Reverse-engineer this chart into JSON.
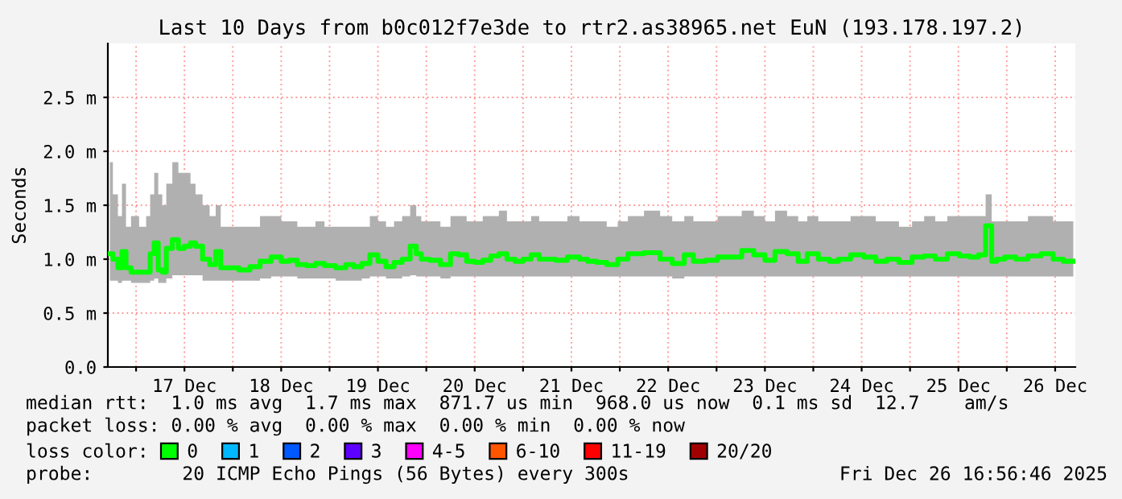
{
  "chart_data": {
    "type": "step",
    "title": "Last 10 Days from b0c012f7e3de to rtr2.as38965.net EuN (193.178.197.2)",
    "ylabel": "Seconds",
    "x": [
      "2025-12-16T17:30",
      "2025-12-16T19:00",
      "2025-12-16T20:00",
      "2025-12-16T21:00",
      "2025-12-16T22:00",
      "2025-12-16T23:30",
      "2025-12-17T02:00",
      "2025-12-17T03:00",
      "2025-12-17T04:00",
      "2025-12-17T05:00",
      "2025-12-17T06:00",
      "2025-12-17T07:00",
      "2025-12-17T08:00",
      "2025-12-17T10:00",
      "2025-12-17T11:00",
      "2025-12-17T13:00",
      "2025-12-17T14:00",
      "2025-12-17T15:30",
      "2025-12-17T17:30",
      "2025-12-17T19:00",
      "2025-12-17T20:30",
      "2025-12-17T21:30",
      "2025-12-18T00:00",
      "2025-12-18T03:00",
      "2025-12-18T05:30",
      "2025-12-18T08:00",
      "2025-12-18T11:00",
      "2025-12-18T13:00",
      "2025-12-18T15:00",
      "2025-12-18T17:00",
      "2025-12-18T19:30",
      "2025-12-18T21:30",
      "2025-12-19T00:00",
      "2025-12-19T03:00",
      "2025-12-19T05:00",
      "2025-12-19T07:00",
      "2025-12-19T09:00",
      "2025-12-19T11:00",
      "2025-12-19T13:00",
      "2025-12-19T15:00",
      "2025-12-19T17:00",
      "2025-12-19T19:00",
      "2025-12-19T21:00",
      "2025-12-19T22:00",
      "2025-12-19T23:30",
      "2025-12-20T02:00",
      "2025-12-20T05:00",
      "2025-12-20T07:00",
      "2025-12-20T09:00",
      "2025-12-20T11:00",
      "2025-12-20T13:00",
      "2025-12-20T15:00",
      "2025-12-20T17:00",
      "2025-12-20T19:00",
      "2025-12-20T21:00",
      "2025-12-20T23:00",
      "2025-12-21T01:00",
      "2025-12-21T03:00",
      "2025-12-21T05:00",
      "2025-12-21T07:00",
      "2025-12-21T09:00",
      "2025-12-21T13:00",
      "2025-12-21T15:00",
      "2025-12-21T17:00",
      "2025-12-21T19:30",
      "2025-12-21T22:00",
      "2025-12-22T01:00",
      "2025-12-22T03:00",
      "2025-12-22T09:00",
      "2025-12-22T11:00",
      "2025-12-22T15:00",
      "2025-12-22T17:00",
      "2025-12-22T19:30",
      "2025-12-22T23:00",
      "2025-12-23T01:30",
      "2025-12-23T05:00",
      "2025-12-23T07:30",
      "2025-12-23T11:00",
      "2025-12-23T13:00",
      "2025-12-23T16:00",
      "2025-12-23T19:00",
      "2025-12-23T21:30",
      "2025-12-23T23:30",
      "2025-12-24T03:00",
      "2025-12-24T05:00",
      "2025-12-24T07:30",
      "2025-12-24T11:00",
      "2025-12-24T14:00",
      "2025-12-24T17:00",
      "2025-12-24T19:30",
      "2025-12-24T23:00",
      "2025-12-25T02:00",
      "2025-12-25T05:00",
      "2025-12-25T07:30",
      "2025-12-25T11:00",
      "2025-12-25T13:30",
      "2025-12-25T16:00",
      "2025-12-25T18:00",
      "2025-12-25T19:30",
      "2025-12-25T21:00",
      "2025-12-25T22:00",
      "2025-12-26T01:00",
      "2025-12-26T03:30",
      "2025-12-26T07:00",
      "2025-12-26T10:00",
      "2025-12-26T13:00",
      "2025-12-26T15:00",
      "2025-12-26T16:30"
    ],
    "series": [
      {
        "name": "0",
        "color": "#00ff00",
        "values": [
          1.05,
          1.0,
          0.92,
          1.07,
          0.92,
          0.88,
          0.88,
          0.88,
          1.05,
          1.15,
          0.9,
          0.88,
          1.1,
          1.18,
          1.1,
          1.12,
          1.15,
          1.12,
          1.0,
          0.95,
          1.07,
          0.92,
          0.92,
          0.9,
          0.93,
          0.98,
          1.02,
          0.98,
          0.99,
          0.95,
          0.94,
          0.96,
          0.94,
          0.92,
          0.95,
          0.93,
          0.96,
          1.04,
          0.98,
          0.93,
          0.97,
          1.0,
          1.12,
          1.05,
          1.0,
          0.99,
          0.95,
          1.05,
          1.04,
          0.98,
          0.97,
          0.99,
          1.03,
          1.05,
          1.0,
          0.98,
          1.0,
          1.04,
          1.0,
          1.0,
          0.99,
          1.02,
          1.0,
          0.98,
          0.97,
          0.95,
          1.0,
          1.05,
          1.06,
          1.0,
          0.96,
          1.04,
          0.98,
          0.99,
          1.02,
          1.02,
          1.08,
          1.04,
          0.99,
          1.07,
          1.05,
          0.98,
          1.05,
          1.0,
          0.98,
          1.0,
          1.04,
          1.02,
          0.98,
          1.0,
          0.97,
          1.02,
          1.03,
          1.0,
          1.05,
          1.03,
          1.02,
          1.04,
          1.31,
          0.98,
          1.0,
          1.02,
          1.0,
          1.03,
          1.05,
          1.0,
          0.98,
          0.98
        ],
        "lower": [
          0.8,
          0.8,
          0.78,
          0.8,
          0.8,
          0.78,
          0.78,
          0.78,
          0.8,
          0.82,
          0.78,
          0.78,
          0.82,
          0.85,
          0.85,
          0.85,
          0.85,
          0.85,
          0.8,
          0.8,
          0.8,
          0.8,
          0.8,
          0.8,
          0.8,
          0.82,
          0.84,
          0.84,
          0.84,
          0.82,
          0.82,
          0.82,
          0.82,
          0.8,
          0.8,
          0.8,
          0.82,
          0.84,
          0.84,
          0.82,
          0.82,
          0.84,
          0.85,
          0.84,
          0.84,
          0.84,
          0.82,
          0.84,
          0.84,
          0.84,
          0.84,
          0.84,
          0.84,
          0.84,
          0.84,
          0.84,
          0.84,
          0.84,
          0.84,
          0.84,
          0.84,
          0.84,
          0.84,
          0.84,
          0.84,
          0.84,
          0.84,
          0.84,
          0.84,
          0.84,
          0.82,
          0.84,
          0.84,
          0.84,
          0.84,
          0.84,
          0.84,
          0.84,
          0.84,
          0.84,
          0.84,
          0.84,
          0.84,
          0.84,
          0.84,
          0.84,
          0.84,
          0.84,
          0.84,
          0.84,
          0.84,
          0.84,
          0.84,
          0.84,
          0.84,
          0.84,
          0.84,
          0.84,
          0.84,
          0.84,
          0.84,
          0.84,
          0.84,
          0.84,
          0.84,
          0.84,
          0.84,
          0.84
        ],
        "upper": [
          1.9,
          1.6,
          1.4,
          1.7,
          1.3,
          1.4,
          1.3,
          1.4,
          1.6,
          1.8,
          1.6,
          1.5,
          1.7,
          1.9,
          1.8,
          1.8,
          1.7,
          1.6,
          1.5,
          1.4,
          1.5,
          1.3,
          1.3,
          1.3,
          1.3,
          1.4,
          1.4,
          1.35,
          1.35,
          1.3,
          1.3,
          1.35,
          1.3,
          1.3,
          1.3,
          1.3,
          1.3,
          1.4,
          1.35,
          1.3,
          1.35,
          1.4,
          1.5,
          1.4,
          1.35,
          1.35,
          1.3,
          1.4,
          1.4,
          1.35,
          1.35,
          1.4,
          1.4,
          1.45,
          1.35,
          1.35,
          1.35,
          1.4,
          1.35,
          1.35,
          1.35,
          1.4,
          1.35,
          1.35,
          1.35,
          1.3,
          1.35,
          1.4,
          1.45,
          1.4,
          1.35,
          1.4,
          1.35,
          1.35,
          1.4,
          1.4,
          1.45,
          1.4,
          1.35,
          1.45,
          1.4,
          1.35,
          1.4,
          1.35,
          1.35,
          1.35,
          1.4,
          1.4,
          1.35,
          1.35,
          1.3,
          1.35,
          1.4,
          1.35,
          1.4,
          1.4,
          1.4,
          1.4,
          1.6,
          1.35,
          1.35,
          1.35,
          1.35,
          1.4,
          1.4,
          1.35,
          1.35,
          1.35
        ]
      },
      {
        "name": "1",
        "color": "#00b8ff",
        "values": [
          null,
          null,
          null,
          null,
          null,
          null,
          null,
          null,
          null,
          null,
          null,
          null,
          null,
          null,
          null,
          null,
          null,
          null,
          null,
          null,
          null,
          null,
          null,
          null,
          null,
          null,
          null,
          null,
          null,
          null,
          null,
          null,
          null,
          null,
          null,
          null,
          null,
          null,
          null,
          null,
          null,
          null,
          null,
          null,
          null,
          null,
          null,
          null,
          null,
          null,
          null,
          null,
          null,
          null,
          null,
          null,
          null,
          null,
          null,
          null,
          null,
          null,
          null,
          null,
          null,
          null,
          null,
          null,
          null,
          null,
          null,
          null,
          null,
          null,
          null,
          null,
          null,
          null,
          null,
          null,
          null,
          null,
          null,
          null,
          null,
          null,
          null,
          null,
          null,
          null,
          null,
          null,
          null,
          null,
          null,
          null,
          null,
          null,
          null,
          null,
          null,
          null,
          null,
          null,
          null,
          null,
          null,
          null
        ]
      },
      {
        "name": "2",
        "color": "#0059ff",
        "values": [
          null,
          null,
          null,
          null,
          null,
          null,
          null,
          null,
          null,
          null,
          null,
          null,
          null,
          null,
          null,
          null,
          null,
          null,
          null,
          null,
          null,
          null,
          null,
          null,
          null,
          null,
          null,
          null,
          null,
          null,
          null,
          null,
          null,
          null,
          null,
          null,
          null,
          null,
          null,
          null,
          null,
          null,
          null,
          null,
          null,
          null,
          null,
          null,
          null,
          null,
          null,
          null,
          null,
          null,
          null,
          null,
          null,
          null,
          null,
          null,
          null,
          null,
          null,
          null,
          null,
          null,
          null,
          null,
          null,
          null,
          null,
          null,
          null,
          null,
          null,
          null,
          null,
          null,
          null,
          null,
          null,
          null,
          null,
          null,
          null,
          null,
          null,
          null,
          null,
          null,
          null,
          null,
          null,
          null,
          null,
          null,
          null,
          null,
          null,
          null,
          null,
          null,
          null,
          null,
          null,
          null,
          null,
          null
        ]
      },
      {
        "name": "3",
        "color": "#5e00ff",
        "values": [
          null,
          null,
          null,
          null,
          null,
          null,
          null,
          null,
          null,
          null,
          null,
          null,
          null,
          null,
          null,
          null,
          null,
          null,
          null,
          null,
          null,
          null,
          null,
          null,
          null,
          null,
          null,
          null,
          null,
          null,
          null,
          null,
          null,
          null,
          null,
          null,
          null,
          null,
          null,
          null,
          null,
          null,
          null,
          null,
          null,
          null,
          null,
          null,
          null,
          null,
          null,
          null,
          null,
          null,
          null,
          null,
          null,
          null,
          null,
          null,
          null,
          null,
          null,
          null,
          null,
          null,
          null,
          null,
          null,
          null,
          null,
          null,
          null,
          null,
          null,
          null,
          null,
          null,
          null,
          null,
          null,
          null,
          null,
          null,
          null,
          null,
          null,
          null,
          null,
          null,
          null,
          null,
          null,
          null,
          null,
          null,
          null,
          null,
          null,
          null,
          null,
          null,
          null,
          null,
          null,
          null,
          null,
          null
        ]
      },
      {
        "name": "4-5",
        "color": "#ff00ff",
        "values": [
          null,
          null,
          null,
          null,
          null,
          null,
          null,
          null,
          null,
          null,
          null,
          null,
          null,
          null,
          null,
          null,
          null,
          null,
          null,
          null,
          null,
          null,
          null,
          null,
          null,
          null,
          null,
          null,
          null,
          null,
          null,
          null,
          null,
          null,
          null,
          null,
          null,
          null,
          null,
          null,
          null,
          null,
          null,
          null,
          null,
          null,
          null,
          null,
          null,
          null,
          null,
          null,
          null,
          null,
          null,
          null,
          null,
          null,
          null,
          null,
          null,
          null,
          null,
          null,
          null,
          null,
          null,
          null,
          null,
          null,
          null,
          null,
          null,
          null,
          null,
          null,
          null,
          null,
          null,
          null,
          null,
          null,
          null,
          null,
          null,
          null,
          null,
          null,
          null,
          null,
          null,
          null,
          null,
          null,
          null,
          null,
          null,
          null,
          null,
          null,
          null,
          null,
          null,
          null,
          null,
          null,
          null,
          null
        ]
      },
      {
        "name": "6-10",
        "color": "#ff5500",
        "values": [
          null,
          null,
          null,
          null,
          null,
          null,
          null,
          null,
          null,
          null,
          null,
          null,
          null,
          null,
          null,
          null,
          null,
          null,
          null,
          null,
          null,
          null,
          null,
          null,
          null,
          null,
          null,
          null,
          null,
          null,
          null,
          null,
          null,
          null,
          null,
          null,
          null,
          null,
          null,
          null,
          null,
          null,
          null,
          null,
          null,
          null,
          null,
          null,
          null,
          null,
          null,
          null,
          null,
          null,
          null,
          null,
          null,
          null,
          null,
          null,
          null,
          null,
          null,
          null,
          null,
          null,
          null,
          null,
          null,
          null,
          null,
          null,
          null,
          null,
          null,
          null,
          null,
          null,
          null,
          null,
          null,
          null,
          null,
          null,
          null,
          null,
          null,
          null,
          null,
          null,
          null,
          null,
          null,
          null,
          null,
          null,
          null,
          null,
          null,
          null,
          null,
          null,
          null,
          null,
          null,
          null,
          null,
          null
        ]
      },
      {
        "name": "11-19",
        "color": "#ff0000",
        "values": [
          null,
          null,
          null,
          null,
          null,
          null,
          null,
          null,
          null,
          null,
          null,
          null,
          null,
          null,
          null,
          null,
          null,
          null,
          null,
          null,
          null,
          null,
          null,
          null,
          null,
          null,
          null,
          null,
          null,
          null,
          null,
          null,
          null,
          null,
          null,
          null,
          null,
          null,
          null,
          null,
          null,
          null,
          null,
          null,
          null,
          null,
          null,
          null,
          null,
          null,
          null,
          null,
          null,
          null,
          null,
          null,
          null,
          null,
          null,
          null,
          null,
          null,
          null,
          null,
          null,
          null,
          null,
          null,
          null,
          null,
          null,
          null,
          null,
          null,
          null,
          null,
          null,
          null,
          null,
          null,
          null,
          null,
          null,
          null,
          null,
          null,
          null,
          null,
          null,
          null,
          null,
          null,
          null,
          null,
          null,
          null,
          null,
          null,
          null,
          null,
          null,
          null,
          null,
          null,
          null,
          null,
          null,
          null
        ]
      },
      {
        "name": "20/20",
        "color": "#a10000",
        "values": [
          null,
          null,
          null,
          null,
          null,
          null,
          null,
          null,
          null,
          null,
          null,
          null,
          null,
          null,
          null,
          null,
          null,
          null,
          null,
          null,
          null,
          null,
          null,
          null,
          null,
          null,
          null,
          null,
          null,
          null,
          null,
          null,
          null,
          null,
          null,
          null,
          null,
          null,
          null,
          null,
          null,
          null,
          null,
          null,
          null,
          null,
          null,
          null,
          null,
          null,
          null,
          null,
          null,
          null,
          null,
          null,
          null,
          null,
          null,
          null,
          null,
          null,
          null,
          null,
          null,
          null,
          null,
          null,
          null,
          null,
          null,
          null,
          null,
          null,
          null,
          null,
          null,
          null,
          null,
          null,
          null,
          null,
          null,
          null,
          null,
          null,
          null,
          null,
          null,
          null,
          null,
          null,
          null,
          null,
          null,
          null,
          null,
          null,
          null,
          null,
          null,
          null,
          null,
          null,
          null,
          null,
          null,
          null
        ]
      }
    ],
    "legend": "bottom",
    "legend_title": "loss color:",
    "grid": true,
    "xlim": [
      "2025-12-16T17:00",
      "2025-12-26T17:00"
    ],
    "xticks": [
      {
        "value": "2025-12-17T00:00",
        "label": null
      },
      {
        "value": "2025-12-17T12:00",
        "label": "17 Dec"
      },
      {
        "value": "2025-12-18T00:00",
        "label": null
      },
      {
        "value": "2025-12-18T12:00",
        "label": "18 Dec"
      },
      {
        "value": "2025-12-19T00:00",
        "label": null
      },
      {
        "value": "2025-12-19T12:00",
        "label": "19 Dec"
      },
      {
        "value": "2025-12-20T00:00",
        "label": null
      },
      {
        "value": "2025-12-20T12:00",
        "label": "20 Dec"
      },
      {
        "value": "2025-12-21T00:00",
        "label": null
      },
      {
        "value": "2025-12-21T12:00",
        "label": "21 Dec"
      },
      {
        "value": "2025-12-22T00:00",
        "label": null
      },
      {
        "value": "2025-12-22T12:00",
        "label": "22 Dec"
      },
      {
        "value": "2025-12-23T00:00",
        "label": null
      },
      {
        "value": "2025-12-23T12:00",
        "label": "23 Dec"
      },
      {
        "value": "2025-12-24T00:00",
        "label": null
      },
      {
        "value": "2025-12-24T12:00",
        "label": "24 Dec"
      },
      {
        "value": "2025-12-25T00:00",
        "label": null
      },
      {
        "value": "2025-12-25T12:00",
        "label": "25 Dec"
      },
      {
        "value": "2025-12-26T00:00",
        "label": null
      },
      {
        "value": "2025-12-26T12:00",
        "label": "26 Dec"
      }
    ],
    "ylim": [
      0,
      3.0
    ],
    "yticks": [
      {
        "value": 0,
        "label": "0.0"
      },
      {
        "value": 0.5,
        "label": "0.5 m"
      },
      {
        "value": 1.0,
        "label": "1.0 m"
      },
      {
        "value": 1.5,
        "label": "1.5 m"
      },
      {
        "value": 2.0,
        "label": "2.0 m"
      },
      {
        "value": 2.5,
        "label": "2.5 m"
      }
    ],
    "annotations": [
      "median rtt:  1.0 ms avg  1.7 ms max  871.7 us min  968.0 us now  0.1 ms sd  12.7    am/s",
      "packet loss: 0.00 % avg  0.00 % max  0.00 % min  0.00 % now",
      "probe:        20 ICMP Echo Pings (56 Bytes) every 300s",
      "Fri Dec 26 16:56:46 2025"
    ]
  }
}
